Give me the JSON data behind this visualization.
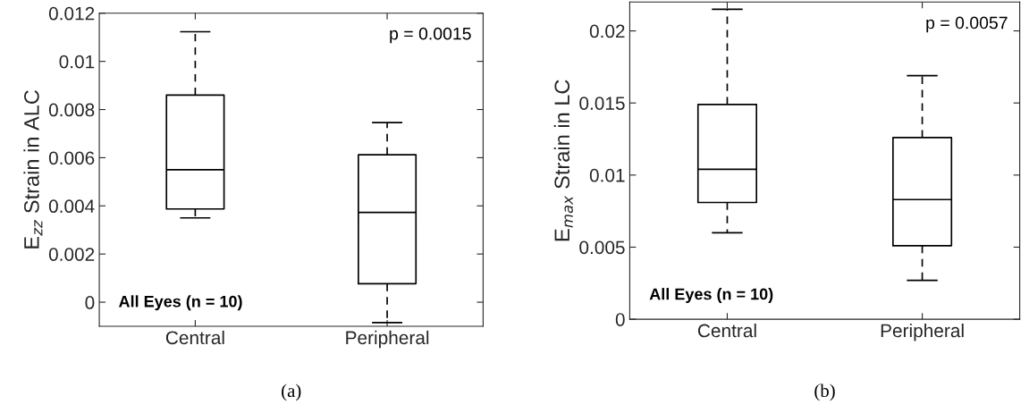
{
  "chart_data": [
    {
      "type": "box",
      "categories": [
        "Central",
        "Peripheral"
      ],
      "ylabel": "E$_{zz}$ Strain in ALC",
      "ylim": [
        -0.001,
        0.012
      ],
      "yticks": [
        0,
        0.002,
        0.004,
        0.006,
        0.008,
        0.01,
        0.012
      ],
      "color": "#000000",
      "grid": false,
      "boxes": [
        {
          "low": 0.0035,
          "q1": 0.00387,
          "median": 0.0055,
          "q3": 0.0086,
          "high": 0.01123
        },
        {
          "low": -0.00085,
          "q1": 0.00077,
          "median": 0.00373,
          "q3": 0.00612,
          "high": 0.00746
        }
      ],
      "annotations": [
        "p = 0.0015",
        "All Eyes (n = 10)",
        "(a)"
      ]
    },
    {
      "type": "box",
      "categories": [
        "Central",
        "Peripheral"
      ],
      "ylabel": "E$_{max}$ Strain in LC",
      "ylim": [
        0,
        0.022
      ],
      "yticks": [
        0,
        0.005,
        0.01,
        0.015,
        0.02
      ],
      "color": "#000000",
      "grid": false,
      "boxes": [
        {
          "low": 0.006,
          "q1": 0.0081,
          "median": 0.0104,
          "q3": 0.0149,
          "high": 0.0215
        },
        {
          "low": 0.0027,
          "q1": 0.0051,
          "median": 0.0083,
          "q3": 0.0126,
          "high": 0.0169
        }
      ],
      "annotations": [
        "p = 0.0057",
        "All Eyes (n = 10)",
        "(b)"
      ]
    }
  ]
}
